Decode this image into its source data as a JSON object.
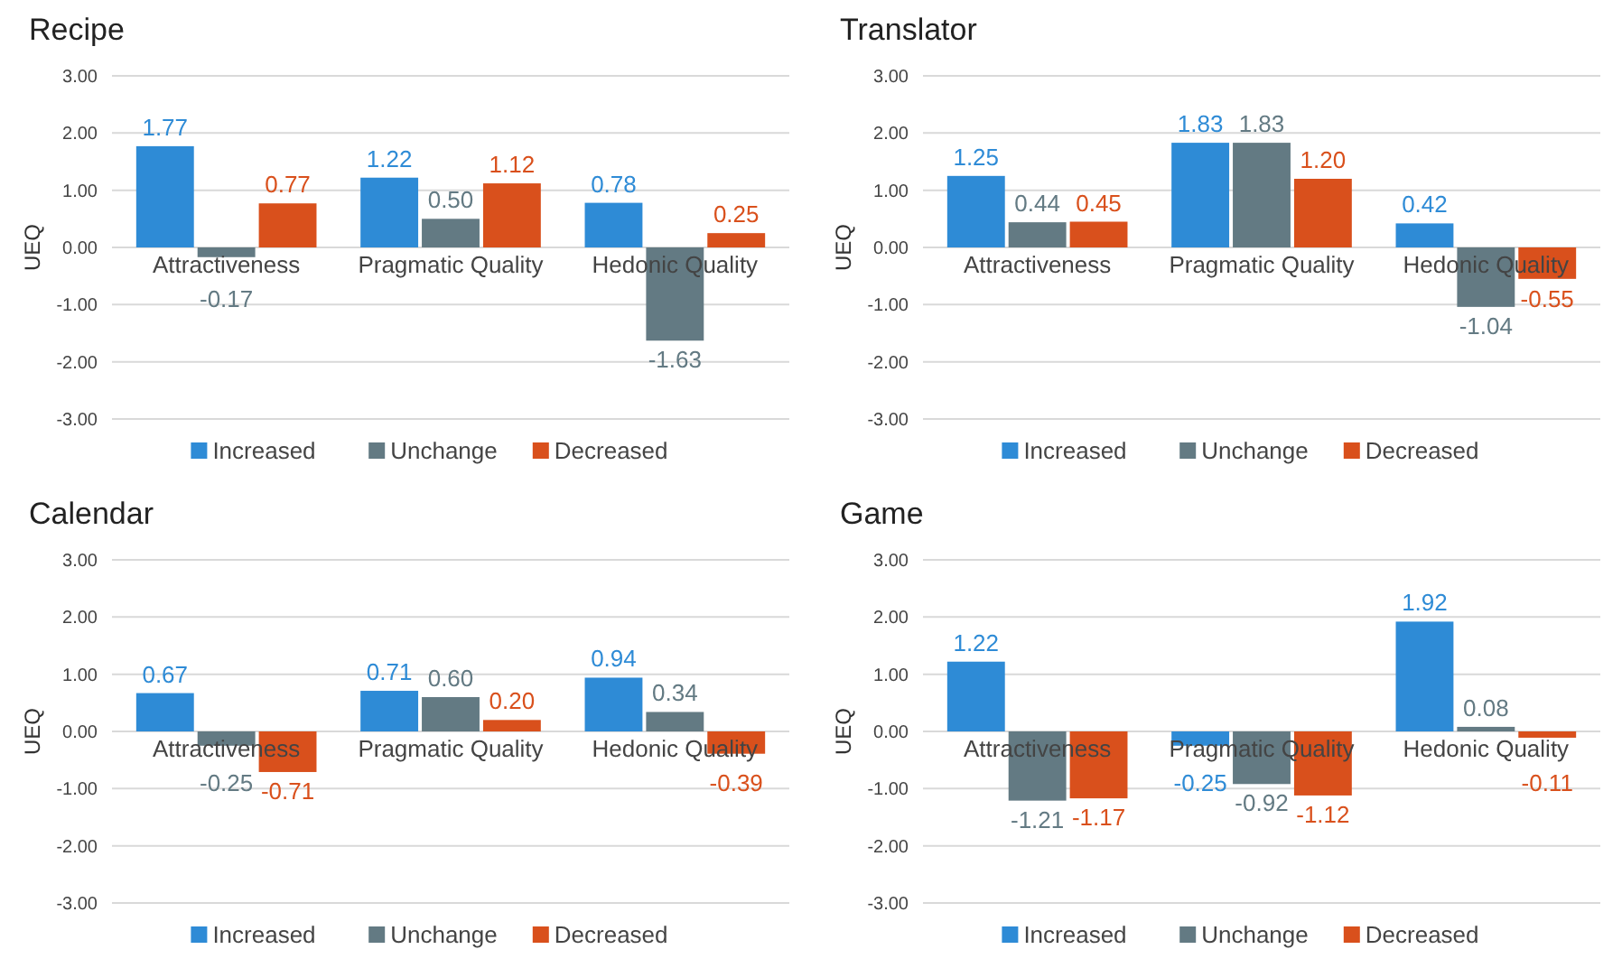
{
  "chart_data": [
    {
      "type": "bar",
      "title": "Recipe",
      "ylabel": "UEQ",
      "categories": [
        "Attractiveness",
        "Pragmatic Quality",
        "Hedonic Quality"
      ],
      "series": [
        {
          "name": "Increased",
          "color": "#2e8bd6",
          "values": [
            1.77,
            1.22,
            0.78
          ],
          "value_labels": [
            "1.77",
            "1.22",
            "0.78"
          ]
        },
        {
          "name": "Unchange",
          "color": "#637a83",
          "values": [
            -0.17,
            0.5,
            -1.63
          ],
          "value_labels": [
            "-0.17",
            "0.50",
            "-1.63"
          ]
        },
        {
          "name": "Decreased",
          "color": "#d9501c",
          "values": [
            0.77,
            1.12,
            0.25
          ],
          "value_labels": [
            "0.77",
            "1.12",
            "0.25"
          ]
        }
      ],
      "ylim": [
        -3,
        3
      ],
      "yticks": [
        {
          "value": -3,
          "label": "-3.00"
        },
        {
          "value": -2,
          "label": "-2.00"
        },
        {
          "value": -1,
          "label": "-1.00"
        },
        {
          "value": 0,
          "label": "0.00"
        },
        {
          "value": 1,
          "label": "1.00"
        },
        {
          "value": 2,
          "label": "2.00"
        },
        {
          "value": 3,
          "label": "3.00"
        }
      ],
      "grid": "y",
      "legend": "bottom"
    },
    {
      "type": "bar",
      "title": "Translator",
      "ylabel": "UEQ",
      "categories": [
        "Attractiveness",
        "Pragmatic Quality",
        "Hedonic Quality"
      ],
      "series": [
        {
          "name": "Increased",
          "color": "#2e8bd6",
          "values": [
            1.25,
            1.83,
            0.42
          ],
          "value_labels": [
            "1.25",
            "1.83",
            "0.42"
          ]
        },
        {
          "name": "Unchange",
          "color": "#637a83",
          "values": [
            0.44,
            1.83,
            -1.04
          ],
          "value_labels": [
            "0.44",
            "1.83",
            "-1.04"
          ]
        },
        {
          "name": "Decreased",
          "color": "#d9501c",
          "values": [
            0.45,
            1.2,
            -0.55
          ],
          "value_labels": [
            "0.45",
            "1.20",
            "-0.55"
          ]
        }
      ],
      "ylim": [
        -3,
        3
      ],
      "yticks": [
        {
          "value": -3,
          "label": "-3.00"
        },
        {
          "value": -2,
          "label": "-2.00"
        },
        {
          "value": -1,
          "label": "-1.00"
        },
        {
          "value": 0,
          "label": "0.00"
        },
        {
          "value": 1,
          "label": "1.00"
        },
        {
          "value": 2,
          "label": "2.00"
        },
        {
          "value": 3,
          "label": "3.00"
        }
      ],
      "grid": "y",
      "legend": "bottom"
    },
    {
      "type": "bar",
      "title": "Calendar",
      "ylabel": "UEQ",
      "categories": [
        "Attractiveness",
        "Pragmatic Quality",
        "Hedonic Quality"
      ],
      "series": [
        {
          "name": "Increased",
          "color": "#2e8bd6",
          "values": [
            0.67,
            0.71,
            0.94
          ],
          "value_labels": [
            "0.67",
            "0.71",
            "0.94"
          ]
        },
        {
          "name": "Unchange",
          "color": "#637a83",
          "values": [
            -0.25,
            0.6,
            0.34
          ],
          "value_labels": [
            "-0.25",
            "0.60",
            "0.34"
          ]
        },
        {
          "name": "Decreased",
          "color": "#d9501c",
          "values": [
            -0.71,
            0.2,
            -0.39
          ],
          "value_labels": [
            "-0.71",
            "0.20",
            "-0.39"
          ]
        }
      ],
      "ylim": [
        -3,
        3
      ],
      "yticks": [
        {
          "value": -3,
          "label": "-3.00"
        },
        {
          "value": -2,
          "label": "-2.00"
        },
        {
          "value": -1,
          "label": "-1.00"
        },
        {
          "value": 0,
          "label": "0.00"
        },
        {
          "value": 1,
          "label": "1.00"
        },
        {
          "value": 2,
          "label": "2.00"
        },
        {
          "value": 3,
          "label": "3.00"
        }
      ],
      "grid": "y",
      "legend": "bottom"
    },
    {
      "type": "bar",
      "title": "Game",
      "ylabel": "UEQ",
      "categories": [
        "Attractiveness",
        "Pragmatic Quality",
        "Hedonic Quality"
      ],
      "series": [
        {
          "name": "Increased",
          "color": "#2e8bd6",
          "values": [
            1.22,
            -0.25,
            1.92
          ],
          "value_labels": [
            "1.22",
            "-0.25",
            "1.92"
          ]
        },
        {
          "name": "Unchange",
          "color": "#637a83",
          "values": [
            -1.21,
            -0.92,
            0.08
          ],
          "value_labels": [
            "-1.21",
            "-0.92",
            "0.08"
          ]
        },
        {
          "name": "Decreased",
          "color": "#d9501c",
          "values": [
            -1.17,
            -1.12,
            -0.11
          ],
          "value_labels": [
            "-1.17",
            "-1.12",
            "-0.11"
          ]
        }
      ],
      "ylim": [
        -3,
        3
      ],
      "yticks": [
        {
          "value": -3,
          "label": "-3.00"
        },
        {
          "value": -2,
          "label": "-2.00"
        },
        {
          "value": -1,
          "label": "-1.00"
        },
        {
          "value": 0,
          "label": "0.00"
        },
        {
          "value": 1,
          "label": "1.00"
        },
        {
          "value": 2,
          "label": "2.00"
        },
        {
          "value": 3,
          "label": "3.00"
        }
      ],
      "grid": "y",
      "legend": "bottom"
    }
  ]
}
